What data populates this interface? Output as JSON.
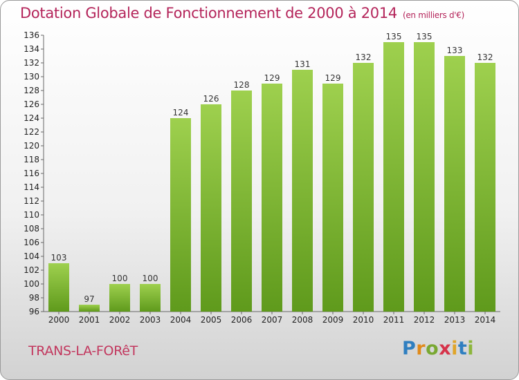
{
  "header": {
    "title": "Dotation Globale de Fonctionnement de 2000 à 2014",
    "subtitle": "(en milliers d'€)"
  },
  "place": "TRANS-LA-FORêT",
  "logo": {
    "letters": [
      "P",
      "r",
      "o",
      "x",
      "i",
      "t",
      "i"
    ]
  },
  "chart_data": {
    "type": "bar",
    "title": "Dotation Globale de Fonctionnement de 2000 à 2014",
    "subtitle": "(en milliers d'€)",
    "categories": [
      "2000",
      "2001",
      "2002",
      "2003",
      "2004",
      "2005",
      "2006",
      "2007",
      "2008",
      "2009",
      "2010",
      "2011",
      "2012",
      "2013",
      "2014"
    ],
    "values": [
      103,
      97,
      100,
      100,
      124,
      126,
      128,
      129,
      131,
      129,
      132,
      135,
      135,
      133,
      132
    ],
    "ylim": [
      96,
      136
    ],
    "yticks": [
      96,
      98,
      100,
      102,
      104,
      106,
      108,
      110,
      112,
      114,
      116,
      118,
      120,
      122,
      124,
      126,
      128,
      130,
      132,
      134,
      136
    ],
    "grid": false,
    "bar_color_top": "#9ed04e",
    "bar_color_bottom": "#5f9a1c",
    "axis_color": "#666666"
  }
}
